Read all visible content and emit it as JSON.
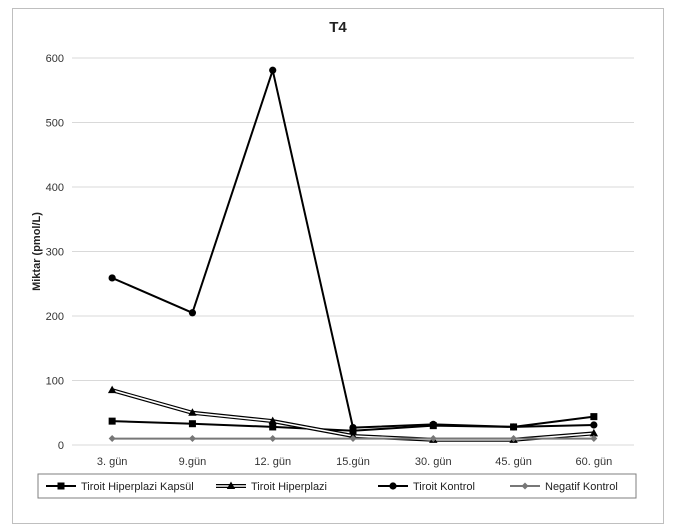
{
  "chart_data": {
    "type": "line",
    "title": "T4",
    "xlabel": "",
    "ylabel": "Miktar (pmol/L)",
    "categories": [
      "3. gün",
      "9.gün",
      "12. gün",
      "15.gün",
      "30. gün",
      "45. gün",
      "60. gün"
    ],
    "ylim": [
      0,
      600
    ],
    "yticks": [
      0,
      100,
      200,
      300,
      400,
      500,
      600
    ],
    "grid": true,
    "legend_position": "bottom",
    "series": [
      {
        "name": "Tiroit Hiperplazi Kapsül",
        "marker": "square",
        "line_style": "solid",
        "values": [
          37,
          33,
          28,
          22,
          30,
          28,
          44
        ]
      },
      {
        "name": "Tiroit Hiperplazi",
        "marker": "triangle",
        "line_style": "double",
        "values": [
          85,
          50,
          37,
          14,
          8,
          8,
          18
        ]
      },
      {
        "name": "Tiroit Kontrol",
        "marker": "circle",
        "line_style": "solid",
        "values": [
          259,
          205,
          581,
          27,
          32,
          28,
          31
        ]
      },
      {
        "name": "Negatif Kontrol",
        "marker": "diamond",
        "line_style": "solid",
        "color": "#777777",
        "values": [
          10,
          10,
          10,
          10,
          10,
          10,
          10
        ]
      }
    ]
  }
}
